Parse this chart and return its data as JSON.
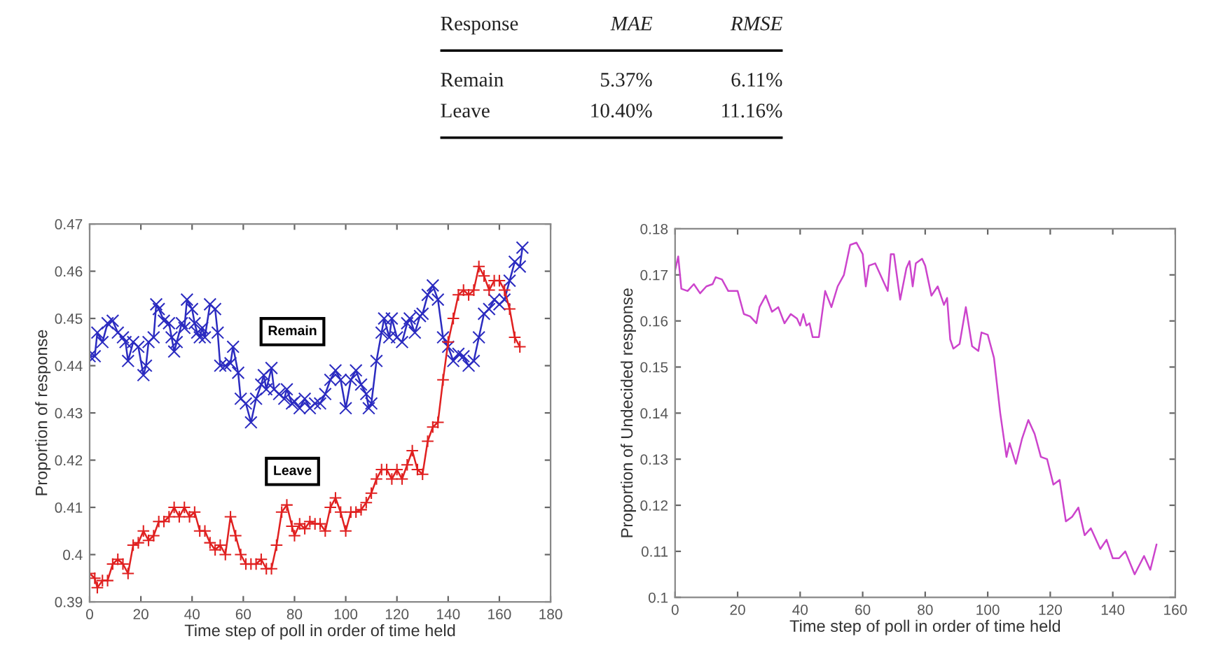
{
  "chart_data": [
    {
      "type": "other",
      "annotations": [
        "Response",
        "MAE",
        "RMSE",
        "Remain",
        "5.37%",
        "6.11%",
        "Leave",
        "10.40%",
        "11.16%"
      ]
    },
    {
      "type": "line",
      "xlabel": "Time step of poll in order of time held",
      "ylabel": "Proportion of response",
      "xlim": [
        0,
        180
      ],
      "xticks": [
        0,
        20,
        40,
        60,
        80,
        100,
        120,
        140,
        160,
        180
      ],
      "ylim": [
        0.39,
        0.47
      ],
      "yticks": [
        0.39,
        0.4,
        0.41,
        0.42,
        0.43,
        0.44,
        0.45,
        0.46,
        0.47
      ],
      "grid": false,
      "legend": false,
      "series": [
        {
          "name": "Remain",
          "color": "#2b2bc0",
          "marker": "x",
          "x": [
            0,
            2,
            3,
            5,
            7,
            9,
            11,
            13,
            14,
            15,
            17,
            19,
            21,
            22,
            23,
            25,
            26,
            27,
            29,
            31,
            32,
            33,
            34,
            36,
            37,
            38,
            40,
            41,
            42,
            43,
            44,
            45,
            47,
            49,
            50,
            51,
            53,
            55,
            56,
            58,
            59,
            61,
            63,
            65,
            67,
            68,
            69,
            71,
            72,
            74,
            76,
            77,
            79,
            80,
            82,
            84,
            86,
            88,
            90,
            92,
            94,
            96,
            98,
            100,
            102,
            104,
            106,
            108,
            109,
            110,
            112,
            114,
            115,
            117,
            118,
            120,
            122,
            124,
            125,
            127,
            129,
            130,
            132,
            134,
            136,
            138,
            140,
            142,
            144,
            146,
            148,
            150,
            152,
            154,
            156,
            158,
            160,
            162,
            164,
            166,
            168,
            169
          ],
          "values": [
            0.442,
            0.442,
            0.447,
            0.445,
            0.449,
            0.4495,
            0.447,
            0.446,
            0.445,
            0.441,
            0.445,
            0.444,
            0.438,
            0.44,
            0.445,
            0.446,
            0.453,
            0.452,
            0.4495,
            0.449,
            0.446,
            0.443,
            0.445,
            0.449,
            0.448,
            0.454,
            0.452,
            0.449,
            0.447,
            0.446,
            0.448,
            0.446,
            0.453,
            0.452,
            0.447,
            0.44,
            0.44,
            0.4405,
            0.444,
            0.4385,
            0.433,
            0.432,
            0.428,
            0.433,
            0.436,
            0.438,
            0.435,
            0.4395,
            0.435,
            0.434,
            0.433,
            0.435,
            0.432,
            0.4324,
            0.431,
            0.433,
            0.431,
            0.432,
            0.432,
            0.434,
            0.437,
            0.439,
            0.437,
            0.431,
            0.437,
            0.439,
            0.436,
            0.434,
            0.431,
            0.432,
            0.441,
            0.447,
            0.45,
            0.446,
            0.45,
            0.446,
            0.445,
            0.449,
            0.45,
            0.447,
            0.4505,
            0.451,
            0.455,
            0.457,
            0.454,
            0.446,
            0.444,
            0.441,
            0.4425,
            0.442,
            0.44,
            0.441,
            0.446,
            0.451,
            0.452,
            0.454,
            0.453,
            0.454,
            0.458,
            0.462,
            0.461,
            0.465
          ]
        },
        {
          "name": "Leave",
          "color": "#e02020",
          "marker": "cross",
          "x": [
            0,
            2,
            3,
            5,
            7,
            9,
            11,
            13,
            15,
            17,
            19,
            21,
            23,
            25,
            27,
            29,
            31,
            33,
            35,
            37,
            39,
            41,
            43,
            45,
            47,
            49,
            51,
            53,
            55,
            57,
            59,
            61,
            63,
            65,
            67,
            69,
            71,
            73,
            75,
            77,
            79,
            80,
            82,
            84,
            86,
            88,
            90,
            92,
            94,
            96,
            98,
            100,
            102,
            104,
            106,
            108,
            110,
            112,
            114,
            116,
            118,
            120,
            122,
            124,
            126,
            128,
            130,
            132,
            134,
            136,
            138,
            140,
            142,
            144,
            146,
            148,
            150,
            152,
            154,
            156,
            158,
            160,
            162,
            164,
            166,
            168
          ],
          "values": [
            0.396,
            0.395,
            0.393,
            0.3945,
            0.3945,
            0.398,
            0.399,
            0.398,
            0.396,
            0.402,
            0.4025,
            0.405,
            0.403,
            0.404,
            0.407,
            0.407,
            0.408,
            0.41,
            0.408,
            0.41,
            0.408,
            0.409,
            0.405,
            0.405,
            0.4025,
            0.401,
            0.402,
            0.4,
            0.408,
            0.404,
            0.4,
            0.398,
            0.398,
            0.398,
            0.399,
            0.397,
            0.397,
            0.402,
            0.409,
            0.4105,
            0.406,
            0.404,
            0.4065,
            0.4055,
            0.407,
            0.4065,
            0.4065,
            0.405,
            0.41,
            0.412,
            0.409,
            0.405,
            0.409,
            0.409,
            0.4095,
            0.411,
            0.413,
            0.416,
            0.418,
            0.418,
            0.416,
            0.418,
            0.416,
            0.419,
            0.422,
            0.418,
            0.417,
            0.424,
            0.427,
            0.428,
            0.437,
            0.445,
            0.45,
            0.455,
            0.456,
            0.455,
            0.456,
            0.461,
            0.459,
            0.456,
            0.458,
            0.458,
            0.456,
            0.452,
            0.446,
            0.444
          ]
        }
      ]
    },
    {
      "type": "line",
      "xlabel": "Time step of poll in order of time held",
      "ylabel": "Proportion of Undecided response",
      "xlim": [
        0,
        160
      ],
      "xticks": [
        0,
        20,
        40,
        60,
        80,
        100,
        120,
        140,
        160
      ],
      "ylim": [
        0.1,
        0.18
      ],
      "yticks": [
        0.1,
        0.11,
        0.12,
        0.13,
        0.14,
        0.15,
        0.16,
        0.17,
        0.18
      ],
      "grid": false,
      "legend": false,
      "series": [
        {
          "color": "#cc44cc",
          "marker": "none",
          "x": [
            0,
            1,
            2,
            4,
            6,
            8,
            10,
            12,
            13,
            15,
            17,
            20,
            22,
            24,
            26,
            27,
            29,
            31,
            33,
            35,
            37,
            39,
            40,
            41,
            42,
            43,
            44,
            46,
            48,
            50,
            52,
            54,
            56,
            58,
            60,
            61,
            62,
            64,
            66,
            68,
            69,
            70,
            72,
            74,
            75,
            76,
            77,
            79,
            80,
            82,
            84,
            86,
            87,
            88,
            89,
            91,
            93,
            95,
            97,
            98,
            100,
            102,
            104,
            106,
            107,
            109,
            111,
            113,
            115,
            117,
            119,
            121,
            123,
            125,
            127,
            129,
            131,
            133,
            136,
            138,
            140,
            142,
            144,
            147,
            150,
            152,
            154
          ],
          "values": [
            0.171,
            0.174,
            0.167,
            0.1665,
            0.168,
            0.166,
            0.1675,
            0.168,
            0.1695,
            0.169,
            0.1665,
            0.1665,
            0.1615,
            0.161,
            0.1595,
            0.163,
            0.1655,
            0.162,
            0.163,
            0.1595,
            0.1615,
            0.1605,
            0.159,
            0.1615,
            0.159,
            0.1595,
            0.1565,
            0.1565,
            0.1665,
            0.163,
            0.1675,
            0.17,
            0.1765,
            0.177,
            0.1745,
            0.1675,
            0.172,
            0.1725,
            0.1695,
            0.1665,
            0.1745,
            0.1745,
            0.1646,
            0.1715,
            0.173,
            0.1675,
            0.1725,
            0.1735,
            0.172,
            0.1655,
            0.1675,
            0.1635,
            0.165,
            0.156,
            0.154,
            0.155,
            0.163,
            0.1545,
            0.1535,
            0.1575,
            0.157,
            0.152,
            0.14,
            0.1305,
            0.1335,
            0.129,
            0.1345,
            0.1385,
            0.1355,
            0.1305,
            0.13,
            0.1245,
            0.1255,
            0.1165,
            0.1175,
            0.1195,
            0.1135,
            0.115,
            0.1105,
            0.1125,
            0.1085,
            0.1085,
            0.11,
            0.105,
            0.109,
            0.106,
            0.1115
          ]
        }
      ]
    }
  ]
}
